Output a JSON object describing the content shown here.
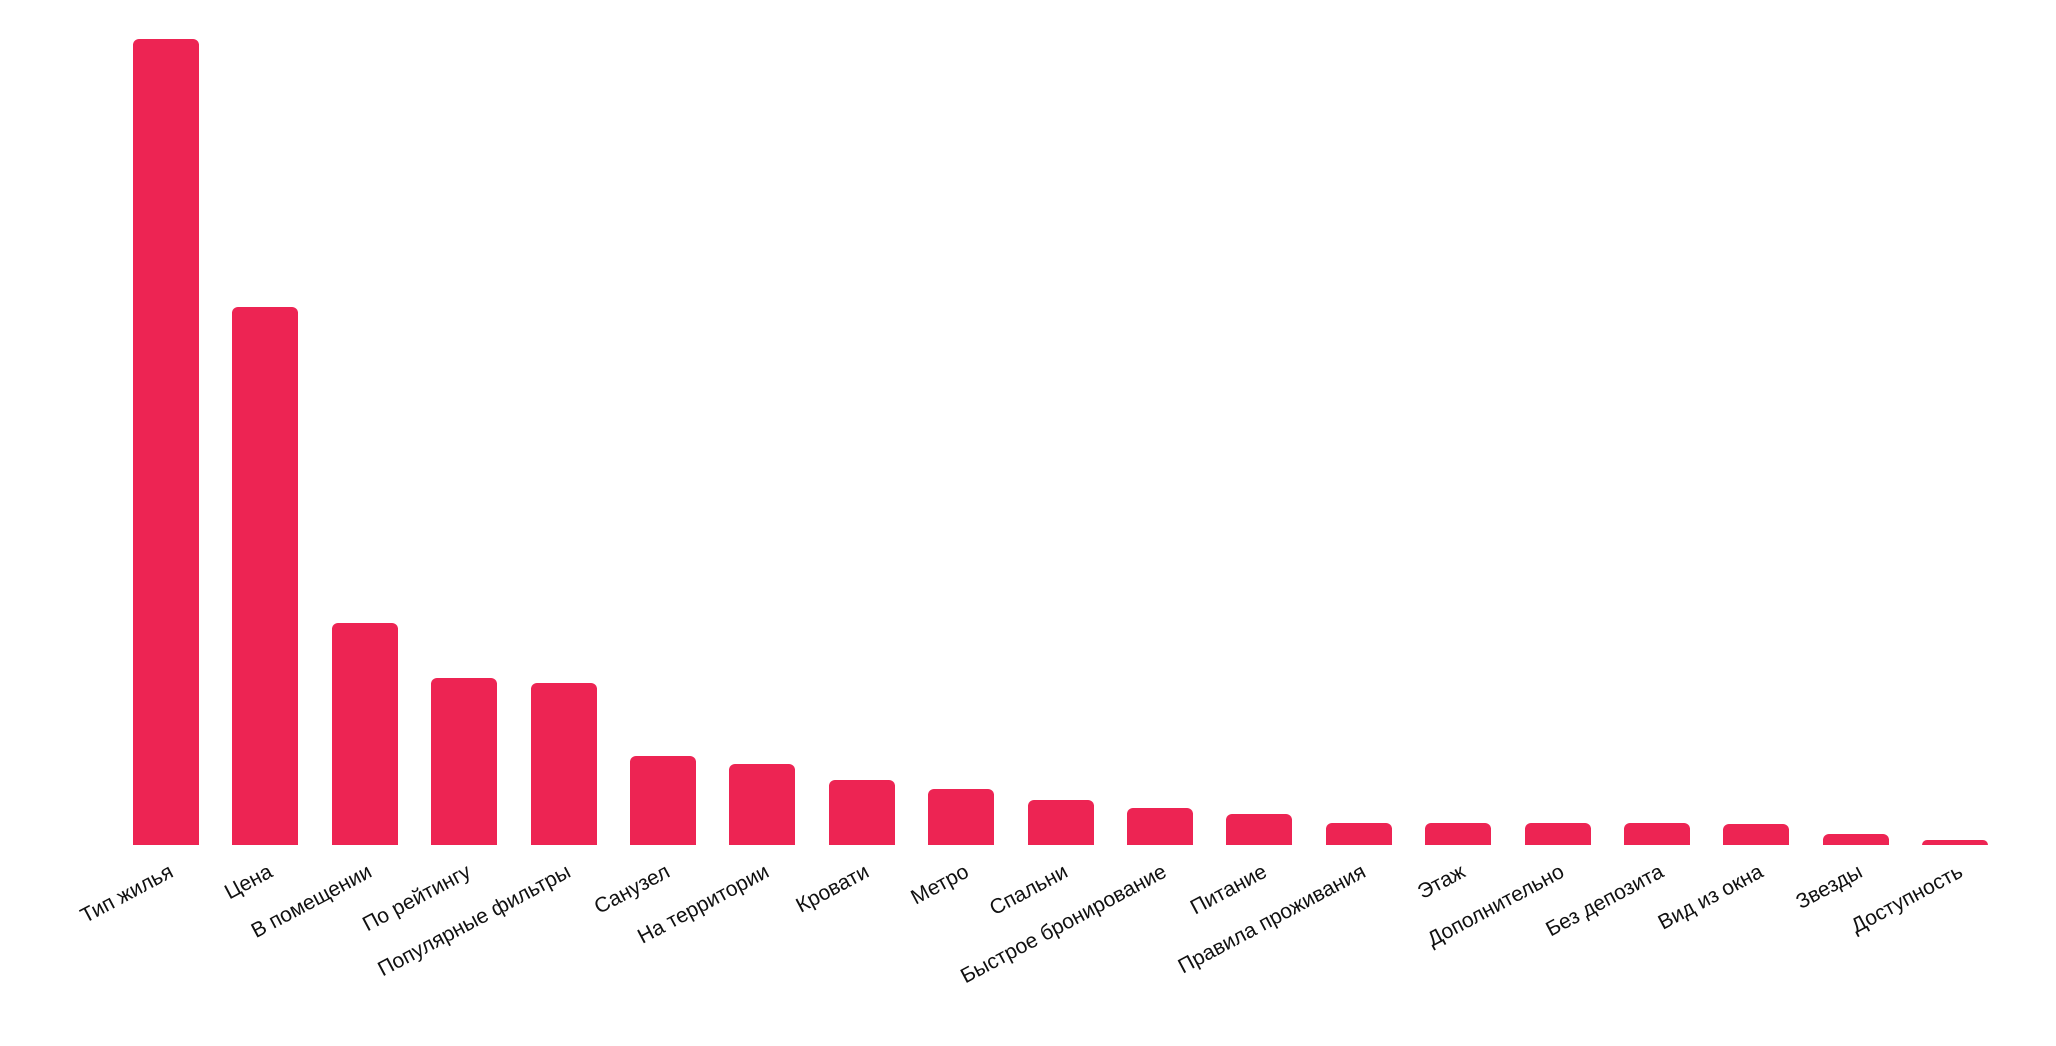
{
  "page": {
    "background": "#ffffff"
  },
  "chart_data": {
    "type": "bar",
    "title": "",
    "xlabel": "",
    "ylabel": "",
    "legend": null,
    "grid": false,
    "axes_visible": false,
    "value_scale": "percent of tallest bar (no y-axis labels shown in image)",
    "ylim": [
      0,
      100
    ],
    "bar_color": "#ED2453",
    "label_color": "#111111",
    "tick_label_rotation_deg": 28,
    "categories": [
      "Тип жилья",
      "Цена",
      "В помещении",
      "По рейтингу",
      "Популярные фильтры",
      "Санузел",
      "На территории",
      "Кровати",
      "Метро",
      "Спальни",
      "Быстрое бронирование",
      "Питание",
      "Правила проживания",
      "Этаж",
      "Дополнительно",
      "Без депозита",
      "Вид из окна",
      "Звезды",
      "Доступность"
    ],
    "values": [
      100,
      66.7,
      27.5,
      20.7,
      20.1,
      11.0,
      10.0,
      8.1,
      6.9,
      5.6,
      4.6,
      3.8,
      2.7,
      2.7,
      2.7,
      2.7,
      2.6,
      1.4,
      0.6
    ]
  }
}
